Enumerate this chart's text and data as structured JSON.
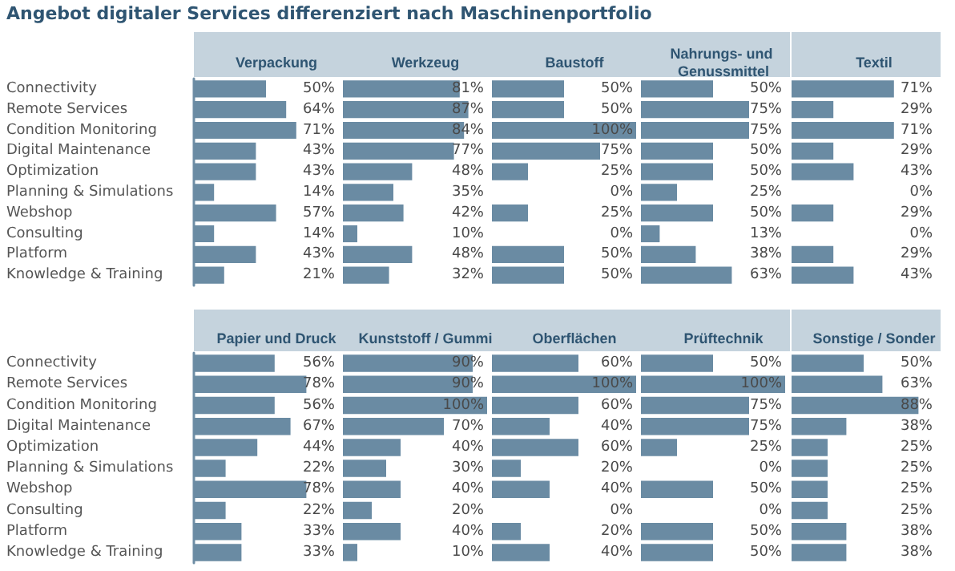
{
  "chart_data": [
    {
      "type": "bar",
      "orientation": "horizontal",
      "title": "Verpackung",
      "annotations": [
        "Angebot digitaler Services differenziert nach Maschinenportfolio"
      ],
      "categories": [
        "Connectivity",
        "Remote Services",
        "Condition Monitoring",
        "Digital Maintenance",
        "Optimization",
        "Planning & Simulations",
        "Webshop",
        "Consulting",
        "Platform",
        "Knowledge & Training"
      ],
      "values": [
        50,
        64,
        71,
        43,
        43,
        14,
        57,
        14,
        43,
        21
      ],
      "value_labels": [
        "50%",
        "64%",
        "71%",
        "43%",
        "43%",
        "14%",
        "57%",
        "14%",
        "43%",
        "21%"
      ],
      "color": "#6a8ba3",
      "xlim": [
        0,
        100
      ],
      "tick_labels": "y"
    },
    {
      "type": "bar",
      "orientation": "horizontal",
      "title": "Werkzeug",
      "categories": [
        "Connectivity",
        "Remote Services",
        "Condition Monitoring",
        "Digital Maintenance",
        "Optimization",
        "Planning & Simulations",
        "Webshop",
        "Consulting",
        "Platform",
        "Knowledge & Training"
      ],
      "values": [
        81,
        87,
        84,
        77,
        48,
        35,
        42,
        10,
        48,
        32
      ],
      "value_labels": [
        "81%",
        "87%",
        "84%",
        "77%",
        "48%",
        "35%",
        "42%",
        "10%",
        "48%",
        "32%"
      ],
      "color": "#6a8ba3",
      "xlim": [
        0,
        100
      ],
      "tick_labels": false
    },
    {
      "type": "bar",
      "orientation": "horizontal",
      "title": "Baustoff",
      "categories": [
        "Connectivity",
        "Remote Services",
        "Condition Monitoring",
        "Digital Maintenance",
        "Optimization",
        "Planning & Simulations",
        "Webshop",
        "Consulting",
        "Platform",
        "Knowledge & Training"
      ],
      "values": [
        50,
        50,
        100,
        75,
        25,
        0,
        25,
        0,
        50,
        50
      ],
      "value_labels": [
        "50%",
        "50%",
        "100%",
        "75%",
        "25%",
        "0%",
        "25%",
        "0%",
        "50%",
        "50%"
      ],
      "color": "#6a8ba3",
      "xlim": [
        0,
        100
      ],
      "tick_labels": false
    },
    {
      "type": "bar",
      "orientation": "horizontal",
      "title": "Nahrungs- und Genussmittel",
      "categories": [
        "Connectivity",
        "Remote Services",
        "Condition Monitoring",
        "Digital Maintenance",
        "Optimization",
        "Planning & Simulations",
        "Webshop",
        "Consulting",
        "Platform",
        "Knowledge & Training"
      ],
      "values": [
        50,
        75,
        75,
        50,
        50,
        25,
        50,
        13,
        38,
        63
      ],
      "value_labels": [
        "50%",
        "75%",
        "75%",
        "50%",
        "50%",
        "25%",
        "50%",
        "13%",
        "38%",
        "63%"
      ],
      "color": "#6a8ba3",
      "xlim": [
        0,
        100
      ],
      "tick_labels": false
    },
    {
      "type": "bar",
      "orientation": "horizontal",
      "title": "Textil",
      "categories": [
        "Connectivity",
        "Remote Services",
        "Condition Monitoring",
        "Digital Maintenance",
        "Optimization",
        "Planning & Simulations",
        "Webshop",
        "Consulting",
        "Platform",
        "Knowledge & Training"
      ],
      "values": [
        71,
        29,
        71,
        29,
        43,
        0,
        29,
        0,
        29,
        43
      ],
      "value_labels": [
        "71%",
        "29%",
        "71%",
        "29%",
        "43%",
        "0%",
        "29%",
        "0%",
        "29%",
        "43%"
      ],
      "color": "#6a8ba3",
      "xlim": [
        0,
        100
      ],
      "tick_labels": false
    },
    {
      "type": "bar",
      "orientation": "horizontal",
      "title": "Papier und Druck",
      "categories": [
        "Connectivity",
        "Remote Services",
        "Condition Monitoring",
        "Digital Maintenance",
        "Optimization",
        "Planning & Simulations",
        "Webshop",
        "Consulting",
        "Platform",
        "Knowledge & Training"
      ],
      "values": [
        56,
        78,
        56,
        67,
        44,
        22,
        78,
        22,
        33,
        33
      ],
      "value_labels": [
        "56%",
        "78%",
        "56%",
        "67%",
        "44%",
        "22%",
        "78%",
        "22%",
        "33%",
        "33%"
      ],
      "color": "#6a8ba3",
      "xlim": [
        0,
        100
      ],
      "tick_labels": "y"
    },
    {
      "type": "bar",
      "orientation": "horizontal",
      "title": "Kunststoff / Gummi",
      "categories": [
        "Connectivity",
        "Remote Services",
        "Condition Monitoring",
        "Digital Maintenance",
        "Optimization",
        "Planning & Simulations",
        "Webshop",
        "Consulting",
        "Platform",
        "Knowledge & Training"
      ],
      "values": [
        90,
        90,
        100,
        70,
        40,
        30,
        40,
        20,
        40,
        10
      ],
      "value_labels": [
        "90%",
        "90%",
        "100%",
        "70%",
        "40%",
        "30%",
        "40%",
        "20%",
        "40%",
        "10%"
      ],
      "color": "#6a8ba3",
      "xlim": [
        0,
        100
      ],
      "tick_labels": false
    },
    {
      "type": "bar",
      "orientation": "horizontal",
      "title": "Oberflächen",
      "categories": [
        "Connectivity",
        "Remote Services",
        "Condition Monitoring",
        "Digital Maintenance",
        "Optimization",
        "Planning & Simulations",
        "Webshop",
        "Consulting",
        "Platform",
        "Knowledge & Training"
      ],
      "values": [
        60,
        100,
        60,
        40,
        60,
        20,
        40,
        0,
        20,
        40
      ],
      "value_labels": [
        "60%",
        "100%",
        "60%",
        "40%",
        "60%",
        "20%",
        "40%",
        "0%",
        "20%",
        "40%"
      ],
      "color": "#6a8ba3",
      "xlim": [
        0,
        100
      ],
      "tick_labels": false
    },
    {
      "type": "bar",
      "orientation": "horizontal",
      "title": "Prüftechnik",
      "categories": [
        "Connectivity",
        "Remote Services",
        "Condition Monitoring",
        "Digital Maintenance",
        "Optimization",
        "Planning & Simulations",
        "Webshop",
        "Consulting",
        "Platform",
        "Knowledge & Training"
      ],
      "values": [
        50,
        100,
        75,
        75,
        25,
        0,
        50,
        0,
        50,
        50
      ],
      "value_labels": [
        "50%",
        "100%",
        "75%",
        "75%",
        "25%",
        "0%",
        "50%",
        "0%",
        "50%",
        "50%"
      ],
      "color": "#6a8ba3",
      "xlim": [
        0,
        100
      ],
      "tick_labels": false
    },
    {
      "type": "bar",
      "orientation": "horizontal",
      "title": "Sonstige / Sonder",
      "categories": [
        "Connectivity",
        "Remote Services",
        "Condition Monitoring",
        "Digital Maintenance",
        "Optimization",
        "Planning & Simulations",
        "Webshop",
        "Consulting",
        "Platform",
        "Knowledge & Training"
      ],
      "values": [
        50,
        63,
        88,
        38,
        25,
        25,
        25,
        25,
        38,
        38
      ],
      "value_labels": [
        "50%",
        "63%",
        "88%",
        "38%",
        "25%",
        "25%",
        "25%",
        "25%",
        "38%",
        "38%"
      ],
      "color": "#6a8ba3",
      "xlim": [
        0,
        100
      ],
      "tick_labels": false
    }
  ]
}
